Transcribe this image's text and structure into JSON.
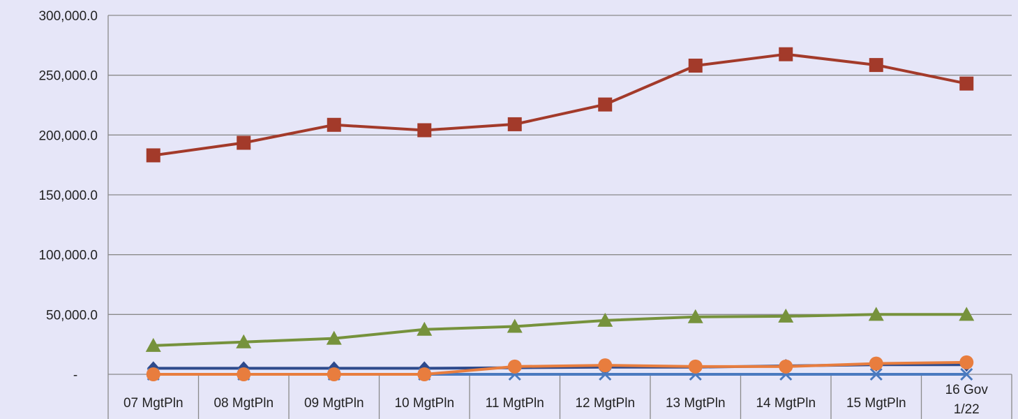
{
  "chart_data": {
    "type": "line",
    "categories": [
      "07 MgtPln",
      "08 MgtPln",
      "09 MgtPln",
      "10 MgtPln",
      "11 MgtPln",
      "12 MgtPln",
      "13 MgtPln",
      "14 MgtPln",
      "15 MgtPln",
      "16 Gov\n1/22"
    ],
    "category_lines": [
      [
        "07 MgtPln"
      ],
      [
        "08 MgtPln"
      ],
      [
        "09 MgtPln"
      ],
      [
        "10 MgtPln"
      ],
      [
        "11 MgtPln"
      ],
      [
        "12 MgtPln"
      ],
      [
        "13 MgtPln"
      ],
      [
        "14 MgtPln"
      ],
      [
        "15 MgtPln"
      ],
      [
        "16 Gov",
        "1/22"
      ]
    ],
    "ylim": [
      0,
      300000
    ],
    "yticks": [
      {
        "value": 0,
        "label": "-"
      },
      {
        "value": 50000,
        "label": "50,000.0"
      },
      {
        "value": 100000,
        "label": "100,000.0"
      },
      {
        "value": 150000,
        "label": "150,000.0"
      },
      {
        "value": 200000,
        "label": "200,000.0"
      },
      {
        "value": 250000,
        "label": "250,000.0"
      },
      {
        "value": 300000,
        "label": "300,000.0"
      }
    ],
    "grid": true,
    "legend": "none",
    "series": [
      {
        "marker": "diamond",
        "color": "#2e4a8c",
        "values": [
          5000,
          5000,
          5000,
          5000,
          5500,
          6000,
          6000,
          7000,
          8000,
          8000
        ]
      },
      {
        "marker": "square",
        "color": "#a33a2a",
        "values": [
          183000,
          193500,
          208500,
          204000,
          209000,
          225500,
          258000,
          267500,
          258500,
          243000
        ]
      },
      {
        "marker": "triangle",
        "color": "#76923c",
        "values": [
          24000,
          27000,
          30000,
          37500,
          40000,
          45000,
          48000,
          48500,
          50000,
          50000
        ]
      },
      {
        "marker": "x",
        "color": "#4a7abf",
        "values": [
          0,
          0,
          0,
          0,
          0,
          0,
          0,
          0,
          0,
          0
        ]
      },
      {
        "marker": "circle",
        "color": "#e87d3e",
        "values": [
          0,
          0,
          0,
          0,
          6500,
          7500,
          6500,
          6500,
          9000,
          10000
        ]
      }
    ]
  }
}
